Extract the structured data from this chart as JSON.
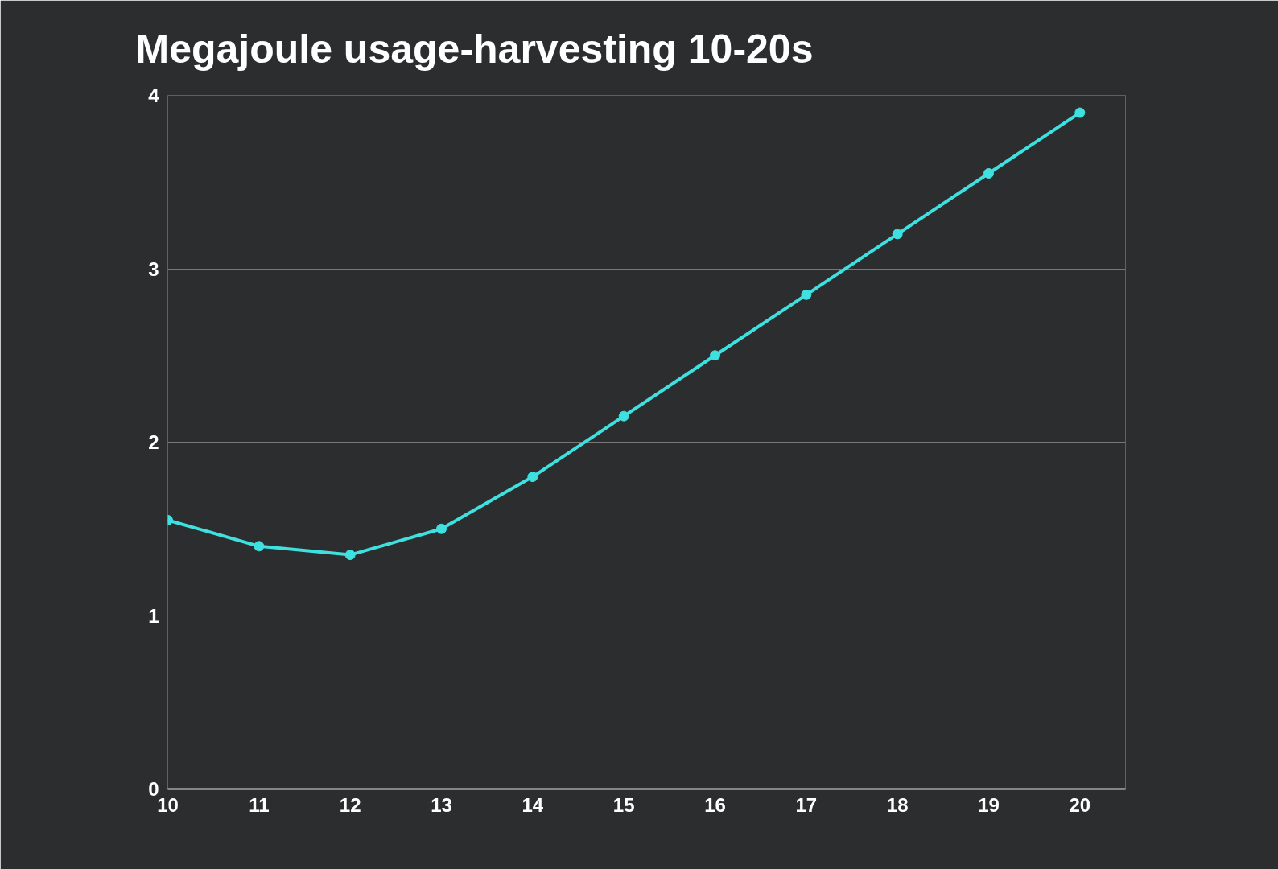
{
  "chart_data": {
    "type": "line",
    "title": "Megajoule usage-harvesting 10-20s",
    "x": [
      10,
      11,
      12,
      13,
      14,
      15,
      16,
      17,
      18,
      19,
      20
    ],
    "series": [
      {
        "color": "#3fe0e0",
        "values": [
          1.55,
          1.4,
          1.35,
          1.5,
          1.8,
          2.15,
          2.5,
          2.85,
          3.2,
          3.55,
          3.9
        ]
      }
    ],
    "xlim": [
      10,
      20.5
    ],
    "ylim": [
      0,
      4
    ],
    "xticks": [
      10,
      11,
      12,
      13,
      14,
      15,
      16,
      17,
      18,
      19,
      20
    ],
    "yticks": [
      0,
      1,
      2,
      3,
      4
    ],
    "grid": "y",
    "marker": "circle",
    "line_style": "solid"
  }
}
